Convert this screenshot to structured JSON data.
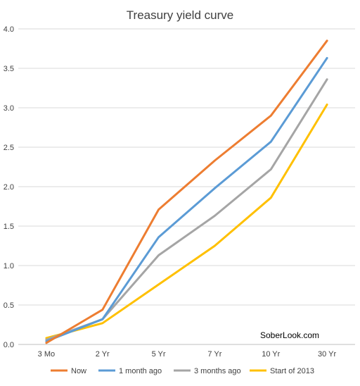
{
  "chart_data": {
    "type": "line",
    "title": "Treasury yield curve",
    "categories": [
      "3 Mo",
      "2 Yr",
      "5 Yr",
      "7 Yr",
      "10 Yr",
      "30 Yr"
    ],
    "ylim": [
      0,
      4.0
    ],
    "yticks": [
      0.0,
      0.5,
      1.0,
      1.5,
      2.0,
      2.5,
      3.0,
      3.5,
      4.0
    ],
    "ytick_labels": [
      "0.0",
      "0.5",
      "1.0",
      "1.5",
      "2.0",
      "2.5",
      "3.0",
      "3.5",
      "4.0"
    ],
    "grid": true,
    "legend_position": "bottom",
    "series": [
      {
        "name": "Now",
        "color": "#ED7D31",
        "values": [
          0.02,
          0.44,
          1.71,
          2.33,
          2.9,
          3.85
        ]
      },
      {
        "name": "1 month ago",
        "color": "#5B9BD5",
        "values": [
          0.04,
          0.32,
          1.36,
          1.98,
          2.57,
          3.63
        ]
      },
      {
        "name": "3 months ago",
        "color": "#A5A5A5",
        "values": [
          0.06,
          0.32,
          1.13,
          1.63,
          2.22,
          3.36
        ]
      },
      {
        "name": "Start of 2013",
        "color": "#FFC000",
        "values": [
          0.08,
          0.27,
          0.76,
          1.25,
          1.86,
          3.04
        ]
      }
    ],
    "annotation": "SoberLook.com"
  }
}
